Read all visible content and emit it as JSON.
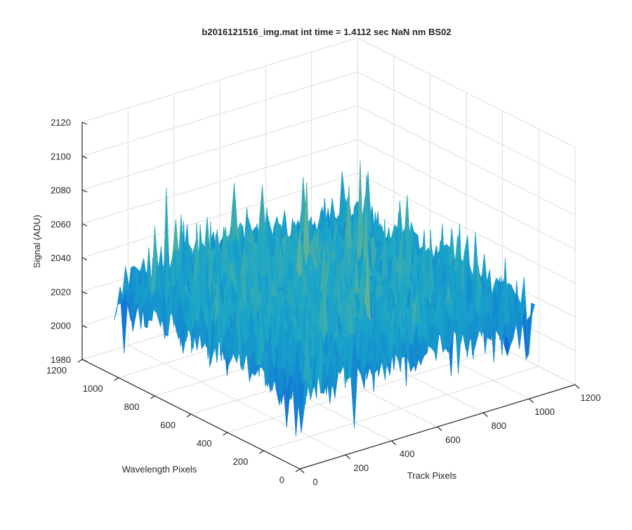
{
  "chart_data": {
    "type": "surface",
    "title": "b2016121516_img.mat int time = 1.4112 sec  NaN nm BS02",
    "xlabel": "Track Pixels",
    "ylabel": "Wavelength Pixels",
    "zlabel": "Signal (ADU)",
    "xlim": [
      0,
      1200
    ],
    "ylim": [
      0,
      1200
    ],
    "zlim": [
      1980,
      2120
    ],
    "xticks": [
      "0",
      "200",
      "400",
      "600",
      "800",
      "1000",
      "1200"
    ],
    "yticks": [
      "0",
      "200",
      "400",
      "600",
      "800",
      "1000",
      "1200"
    ],
    "zticks": [
      "1980",
      "2000",
      "2020",
      "2040",
      "2060",
      "2080",
      "2100",
      "2120"
    ],
    "grid": true,
    "colormap": "parula",
    "surface": {
      "x_range": [
        0,
        1024
      ],
      "y_range": [
        0,
        1024
      ],
      "mean_signal": 2025,
      "noise_std": 9,
      "min_signal": 1980,
      "max_signal": 2112
    },
    "colors": {
      "low": "#0a50e0",
      "mid": "#1aa6c8",
      "high": "#d6c63c",
      "grid": "#dedede",
      "axis": "#262626"
    }
  }
}
